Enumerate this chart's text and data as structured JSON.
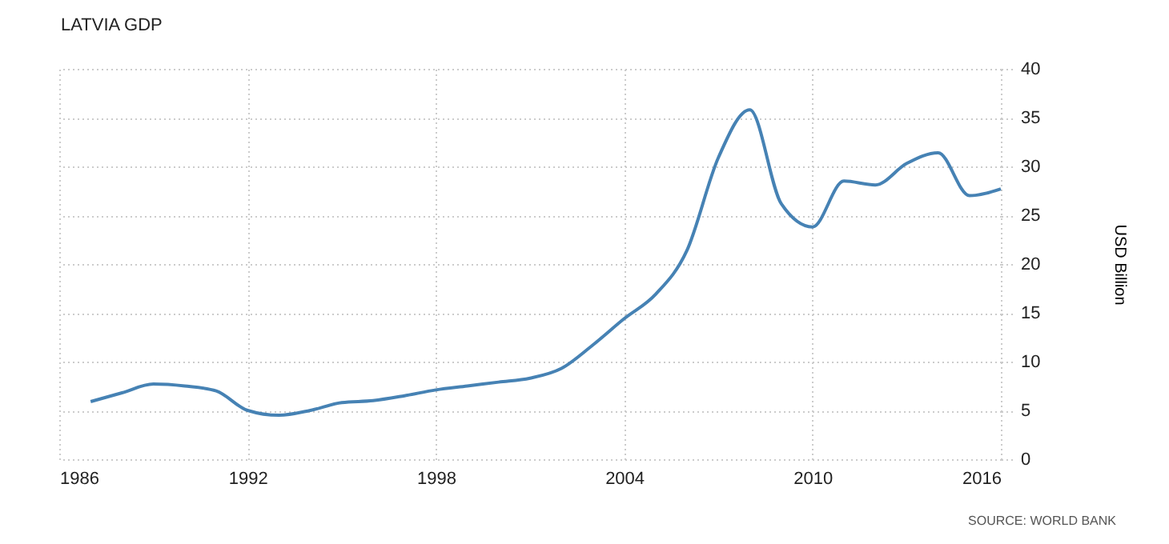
{
  "chart_data": {
    "type": "line",
    "title": "LATVIA GDP",
    "ylabel": "USD Billion",
    "annotations": [
      "SOURCE: WORLD BANK"
    ],
    "x": [
      1987,
      1988,
      1989,
      1990,
      1991,
      1992,
      1993,
      1994,
      1995,
      1996,
      1997,
      1998,
      1999,
      2000,
      2001,
      2002,
      2003,
      2004,
      2005,
      2006,
      2007,
      2008,
      2009,
      2010,
      2011,
      2012,
      2013,
      2014,
      2015,
      2016
    ],
    "series": [
      {
        "color": "#4682b4",
        "values": [
          5.9,
          6.8,
          7.7,
          7.5,
          7.0,
          5.0,
          4.5,
          5.0,
          5.8,
          6.0,
          6.5,
          7.1,
          7.5,
          7.9,
          8.3,
          9.3,
          11.7,
          14.4,
          16.9,
          21.4,
          30.9,
          35.8,
          26.2,
          23.8,
          28.5,
          28.1,
          30.3,
          31.4,
          27.0,
          27.7
        ]
      }
    ],
    "xlim": [
      1986,
      2016
    ],
    "xticks": [
      1986,
      1992,
      1998,
      2004,
      2010,
      2016
    ],
    "ylim": [
      0,
      40
    ],
    "yticks": [
      0,
      5,
      10,
      15,
      20,
      25,
      30,
      35,
      40
    ],
    "grid": true,
    "legend": false,
    "marker": "none",
    "line_style": "solid"
  }
}
